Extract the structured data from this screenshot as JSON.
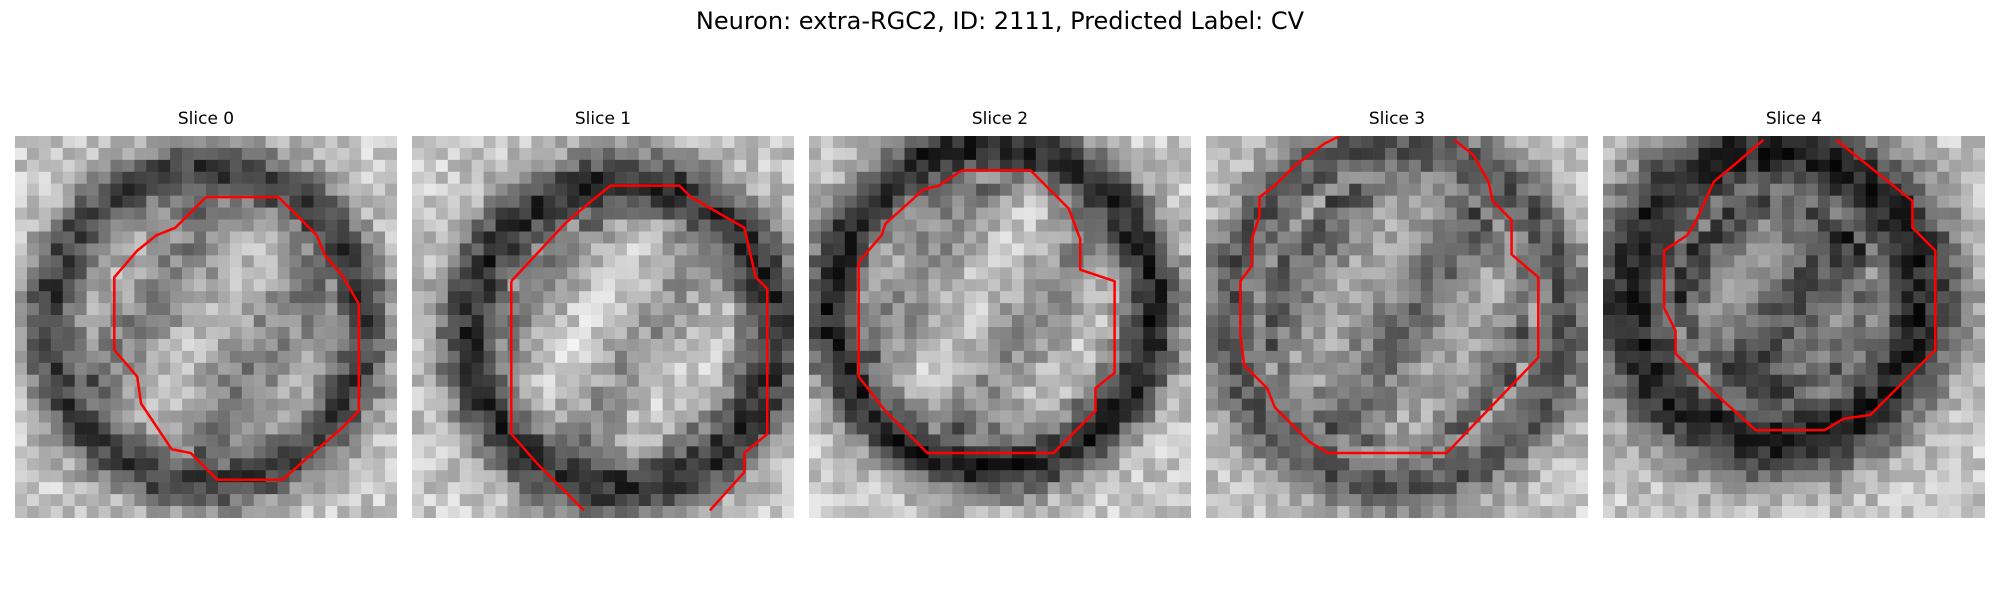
{
  "figure": {
    "title": "Neuron: extra-RGC2, ID: 2111, Predicted Label: CV"
  },
  "colors": {
    "contour": "#ff0000",
    "background": "#ffffff"
  },
  "panels": [
    {
      "title": "Slice 0",
      "contour": [
        [
          0.5,
          0.16
        ],
        [
          0.69,
          0.16
        ],
        [
          0.79,
          0.26
        ],
        [
          0.81,
          0.31
        ],
        [
          0.86,
          0.37
        ],
        [
          0.9,
          0.44
        ],
        [
          0.9,
          0.72
        ],
        [
          0.85,
          0.77
        ],
        [
          0.78,
          0.83
        ],
        [
          0.7,
          0.9
        ],
        [
          0.53,
          0.9
        ],
        [
          0.46,
          0.83
        ],
        [
          0.41,
          0.82
        ],
        [
          0.33,
          0.7
        ],
        [
          0.32,
          0.63
        ],
        [
          0.26,
          0.56
        ],
        [
          0.26,
          0.37
        ],
        [
          0.32,
          0.3
        ],
        [
          0.37,
          0.26
        ],
        [
          0.42,
          0.24
        ],
        [
          0.5,
          0.16
        ]
      ]
    },
    {
      "title": "Slice 1",
      "contour": [
        [
          0.26,
          0.38
        ],
        [
          0.4,
          0.23
        ],
        [
          0.47,
          0.17
        ],
        [
          0.52,
          0.13
        ],
        [
          0.7,
          0.13
        ],
        [
          0.73,
          0.16
        ],
        [
          0.87,
          0.24
        ],
        [
          0.9,
          0.37
        ],
        [
          0.93,
          0.4
        ],
        [
          0.93,
          0.78
        ],
        [
          0.87,
          0.83
        ],
        [
          0.87,
          0.88
        ],
        [
          0.78,
          0.98
        ]
      ],
      "contour2": [
        [
          0.26,
          0.38
        ],
        [
          0.26,
          0.78
        ],
        [
          0.33,
          0.86
        ],
        [
          0.45,
          0.98
        ]
      ]
    },
    {
      "title": "Slice 2",
      "contour": [
        [
          0.4,
          0.09
        ],
        [
          0.58,
          0.09
        ],
        [
          0.68,
          0.19
        ],
        [
          0.71,
          0.27
        ],
        [
          0.71,
          0.35
        ],
        [
          0.8,
          0.38
        ],
        [
          0.8,
          0.62
        ],
        [
          0.75,
          0.66
        ],
        [
          0.75,
          0.72
        ],
        [
          0.64,
          0.83
        ],
        [
          0.31,
          0.83
        ],
        [
          0.2,
          0.72
        ],
        [
          0.13,
          0.63
        ],
        [
          0.13,
          0.33
        ],
        [
          0.19,
          0.26
        ],
        [
          0.2,
          0.23
        ],
        [
          0.3,
          0.14
        ],
        [
          0.34,
          0.13
        ],
        [
          0.4,
          0.09
        ]
      ]
    },
    {
      "title": "Slice 3",
      "contour": [
        [
          0.23,
          0.08
        ],
        [
          0.31,
          0.02
        ],
        [
          0.35,
          0.0
        ]
      ],
      "contour2": [
        [
          0.65,
          0.01
        ],
        [
          0.7,
          0.05
        ],
        [
          0.74,
          0.12
        ],
        [
          0.75,
          0.17
        ],
        [
          0.8,
          0.22
        ],
        [
          0.8,
          0.31
        ],
        [
          0.87,
          0.37
        ],
        [
          0.87,
          0.58
        ],
        [
          0.63,
          0.83
        ],
        [
          0.32,
          0.83
        ],
        [
          0.27,
          0.8
        ],
        [
          0.18,
          0.71
        ],
        [
          0.16,
          0.66
        ],
        [
          0.1,
          0.6
        ],
        [
          0.09,
          0.52
        ],
        [
          0.09,
          0.38
        ],
        [
          0.12,
          0.34
        ],
        [
          0.12,
          0.27
        ],
        [
          0.14,
          0.21
        ],
        [
          0.14,
          0.16
        ],
        [
          0.18,
          0.13
        ],
        [
          0.23,
          0.08
        ]
      ]
    },
    {
      "title": "Slice 4",
      "contour": [
        [
          0.42,
          0.01
        ],
        [
          0.35,
          0.07
        ],
        [
          0.29,
          0.12
        ],
        [
          0.24,
          0.23
        ],
        [
          0.22,
          0.26
        ],
        [
          0.16,
          0.3
        ],
        [
          0.16,
          0.45
        ],
        [
          0.19,
          0.51
        ],
        [
          0.19,
          0.57
        ],
        [
          0.3,
          0.68
        ],
        [
          0.4,
          0.77
        ],
        [
          0.58,
          0.77
        ],
        [
          0.63,
          0.74
        ],
        [
          0.7,
          0.73
        ],
        [
          0.87,
          0.56
        ],
        [
          0.87,
          0.3
        ],
        [
          0.81,
          0.24
        ],
        [
          0.81,
          0.17
        ],
        [
          0.61,
          0.01
        ]
      ]
    }
  ]
}
